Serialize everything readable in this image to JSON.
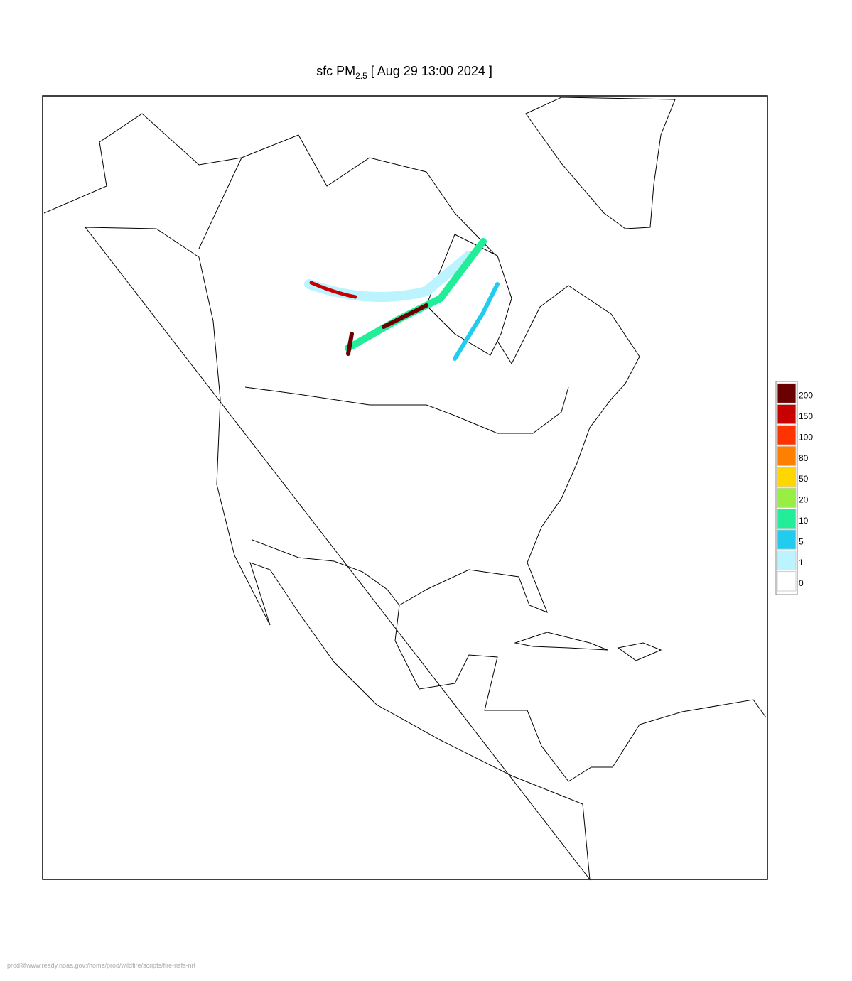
{
  "title": {
    "prefix": "sfc PM",
    "subscript": "2.5",
    "suffix": "[ Aug 29 13:00 2024 ]"
  },
  "legend": {
    "entries": [
      {
        "value": 200,
        "color": "#6b0000"
      },
      {
        "value": 150,
        "color": "#c80000"
      },
      {
        "value": 100,
        "color": "#ff3300"
      },
      {
        "value": 80,
        "color": "#ff8000"
      },
      {
        "value": 50,
        "color": "#ffd700"
      },
      {
        "value": 20,
        "color": "#99ee44"
      },
      {
        "value": 10,
        "color": "#22ee99"
      },
      {
        "value": 5,
        "color": "#22ccee"
      },
      {
        "value": 1,
        "color": "#bbf4ff"
      },
      {
        "value": 0,
        "color": "#ffffff"
      }
    ]
  },
  "footer": "prod@www.ready.noaa.gov:/home/prod/wildfire/scripts/fire-nsfs-nrt"
}
